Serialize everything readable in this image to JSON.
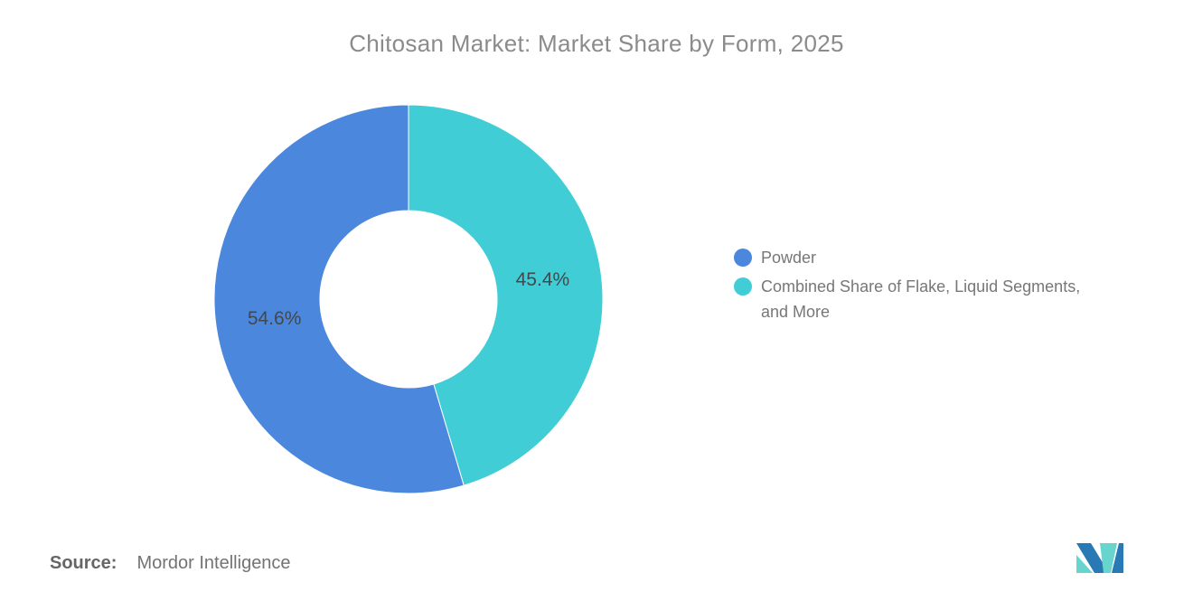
{
  "header": {
    "title": "Chitosan Market: Market Share by Form, 2025"
  },
  "chart_data": {
    "type": "pie",
    "subtype": "donut",
    "title": "Chitosan Market: Market Share by Form, 2025",
    "categories": [
      "Powder",
      "Combined Share of Flake, Liquid Segments, and More"
    ],
    "values": [
      54.6,
      45.4
    ],
    "data_labels": [
      "54.6%",
      "45.4%"
    ],
    "colors": [
      "#4a87dd",
      "#41cdd6"
    ],
    "start_angle_deg": 163.44,
    "direction": "clockwise",
    "inner_radius_ratio": 0.456,
    "legend_position": "right",
    "slice_border_color": "#ffffff"
  },
  "legend": {
    "items": [
      {
        "label": "Powder",
        "color": "#4a87dd"
      },
      {
        "label": "Combined Share of Flake, Liquid Segments,\nand More",
        "color": "#41cdd6"
      }
    ]
  },
  "footer": {
    "source_prefix": "Source:",
    "source_text": "Mordor Intelligence"
  },
  "logo": {
    "name": "mordor-intelligence-logo",
    "blue": "#2979b5",
    "teal": "#67d5cd"
  },
  "colors": {
    "title_text": "#8b8b8b",
    "data_label_text": "#45484a",
    "legend_text": "#777777",
    "source_text": "#737373",
    "background": "#ffffff"
  }
}
